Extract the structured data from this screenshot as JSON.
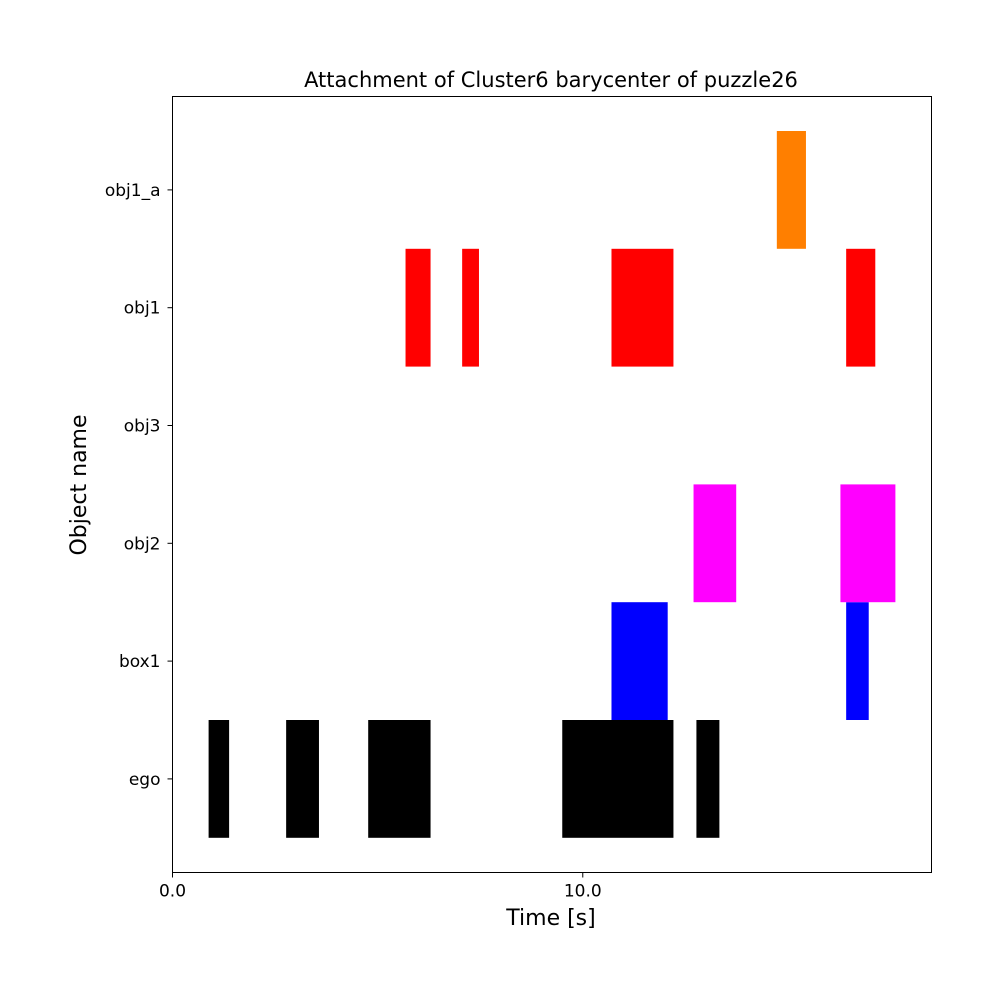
{
  "chart_data": {
    "type": "timeline",
    "title": "Attachment of Cluster6 barycenter of puzzle26",
    "xlabel": "Time [s]",
    "ylabel": "Object name",
    "xlim": [
      0.0,
      18.5
    ],
    "x_ticks": [
      0.0,
      10.0
    ],
    "x_tick_labels": [
      "0.0",
      "10.0"
    ],
    "categories": [
      "ego",
      "box1",
      "obj2",
      "obj3",
      "obj1",
      "obj1_a"
    ],
    "series": [
      {
        "category": "ego",
        "color": "#000000",
        "intervals": [
          [
            0.88,
            1.38
          ],
          [
            2.77,
            3.57
          ],
          [
            4.77,
            6.29
          ],
          [
            9.5,
            12.21
          ],
          [
            12.77,
            13.33
          ]
        ]
      },
      {
        "category": "box1",
        "color": "#0000ff",
        "intervals": [
          [
            10.7,
            12.07
          ],
          [
            16.42,
            16.97
          ]
        ]
      },
      {
        "category": "obj2",
        "color": "#ff00ff",
        "intervals": [
          [
            12.7,
            13.74
          ],
          [
            16.28,
            17.62
          ]
        ]
      },
      {
        "category": "obj3",
        "color": "#ffffff",
        "intervals": []
      },
      {
        "category": "obj1",
        "color": "#ff0000",
        "intervals": [
          [
            5.68,
            6.29
          ],
          [
            7.06,
            7.47
          ],
          [
            10.7,
            12.21
          ],
          [
            16.42,
            17.13
          ]
        ]
      },
      {
        "category": "obj1_a",
        "color": "#ff7f00",
        "intervals": [
          [
            14.73,
            15.44
          ]
        ]
      }
    ],
    "grid": false,
    "legend": "none"
  }
}
